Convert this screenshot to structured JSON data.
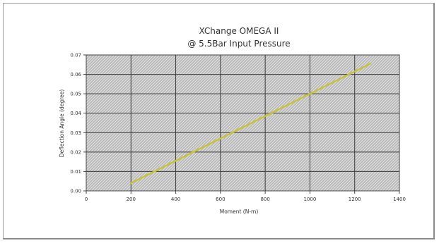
{
  "chart_data": {
    "type": "line",
    "title": "XChange OMEGA II",
    "subtitle": "@ 5.5Bar Input Pressure",
    "xlabel": "Moment (N-m)",
    "ylabel": "Deflection Angle (degree)",
    "xlim": [
      0,
      1400
    ],
    "ylim": [
      0.0,
      0.07
    ],
    "x_ticks": [
      "0",
      "200",
      "400",
      "600",
      "800",
      "1000",
      "1200",
      "1400"
    ],
    "y_ticks": [
      "0.00",
      "0.01",
      "0.02",
      "0.03",
      "0.04",
      "0.05",
      "0.06",
      "0.07"
    ],
    "grid": true,
    "series": [
      {
        "color": "#c8c23a",
        "x": [
          200,
          1270
        ],
        "y": [
          0.004,
          0.0655
        ]
      }
    ]
  }
}
